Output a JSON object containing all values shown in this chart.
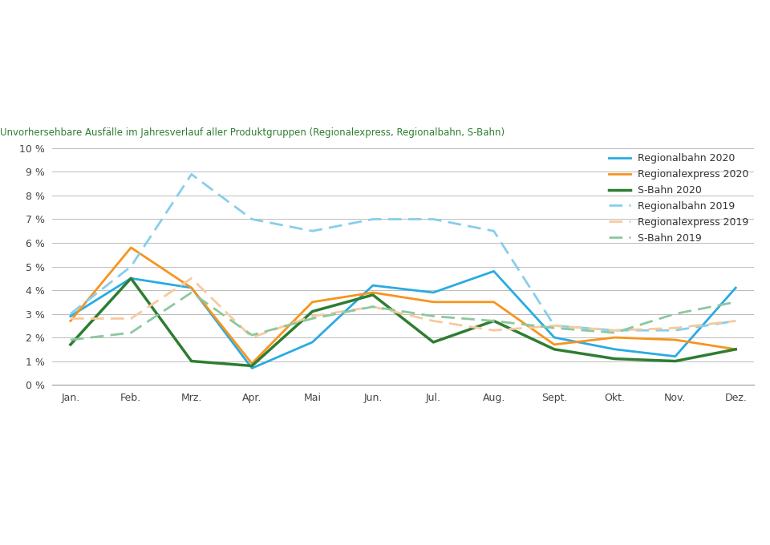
{
  "title": "Unvorhersehbare Ausfälle im Jahresverlauf aller Produktgruppen (Regionalexpress, Regionalbahn, S-Bahn)",
  "months": [
    "Jan.",
    "Feb.",
    "Mrz.",
    "Apr.",
    "Mai",
    "Jun.",
    "Jul.",
    "Aug.",
    "Sept.",
    "Okt.",
    "Nov.",
    "Dez."
  ],
  "series": {
    "Regionalbahn 2020": [
      2.9,
      4.5,
      4.1,
      0.7,
      1.8,
      4.2,
      3.9,
      4.8,
      2.0,
      1.5,
      1.2,
      4.1
    ],
    "Regionalexpress 2020": [
      2.7,
      5.8,
      4.1,
      0.9,
      3.5,
      3.9,
      3.5,
      3.5,
      1.7,
      2.0,
      1.9,
      1.5
    ],
    "S-Bahn 2020": [
      1.7,
      4.5,
      1.0,
      0.8,
      3.1,
      3.8,
      1.8,
      2.7,
      1.5,
      1.1,
      1.0,
      1.5
    ],
    "Regionalbahn 2019": [
      3.0,
      5.0,
      8.9,
      7.0,
      6.5,
      7.0,
      7.0,
      6.5,
      2.5,
      2.3,
      2.3,
      2.7
    ],
    "Regionalexpress 2019": [
      2.8,
      2.8,
      4.5,
      2.0,
      2.9,
      3.3,
      2.7,
      2.3,
      2.5,
      2.3,
      2.4,
      2.7
    ],
    "S-Bahn 2019": [
      1.9,
      2.2,
      3.9,
      2.1,
      2.8,
      3.3,
      2.9,
      2.7,
      2.4,
      2.2,
      3.0,
      3.5
    ]
  },
  "colors": {
    "Regionalbahn 2020": "#29ABE2",
    "Regionalexpress 2020": "#F7941D",
    "S-Bahn 2020": "#2E7D32",
    "Regionalbahn 2019": "#87CEEB",
    "Regionalexpress 2019": "#F7C99D",
    "S-Bahn 2019": "#8BC89E"
  },
  "linestyles": {
    "Regionalbahn 2020": "solid",
    "Regionalexpress 2020": "solid",
    "S-Bahn 2020": "solid",
    "Regionalbahn 2019": "dashed",
    "Regionalexpress 2019": "dashed",
    "S-Bahn 2019": "dashed"
  },
  "linewidths": {
    "Regionalbahn 2020": 2.0,
    "Regionalexpress 2020": 2.0,
    "S-Bahn 2020": 2.5,
    "Regionalbahn 2019": 2.0,
    "Regionalexpress 2019": 2.0,
    "S-Bahn 2019": 2.0
  },
  "ylim": [
    0,
    10
  ],
  "yticks": [
    0,
    1,
    2,
    3,
    4,
    5,
    6,
    7,
    8,
    9,
    10
  ],
  "title_color": "#2E7D32",
  "title_fontsize": 8.5,
  "tick_fontsize": 9,
  "legend_fontsize": 9,
  "background_color": "#ffffff"
}
